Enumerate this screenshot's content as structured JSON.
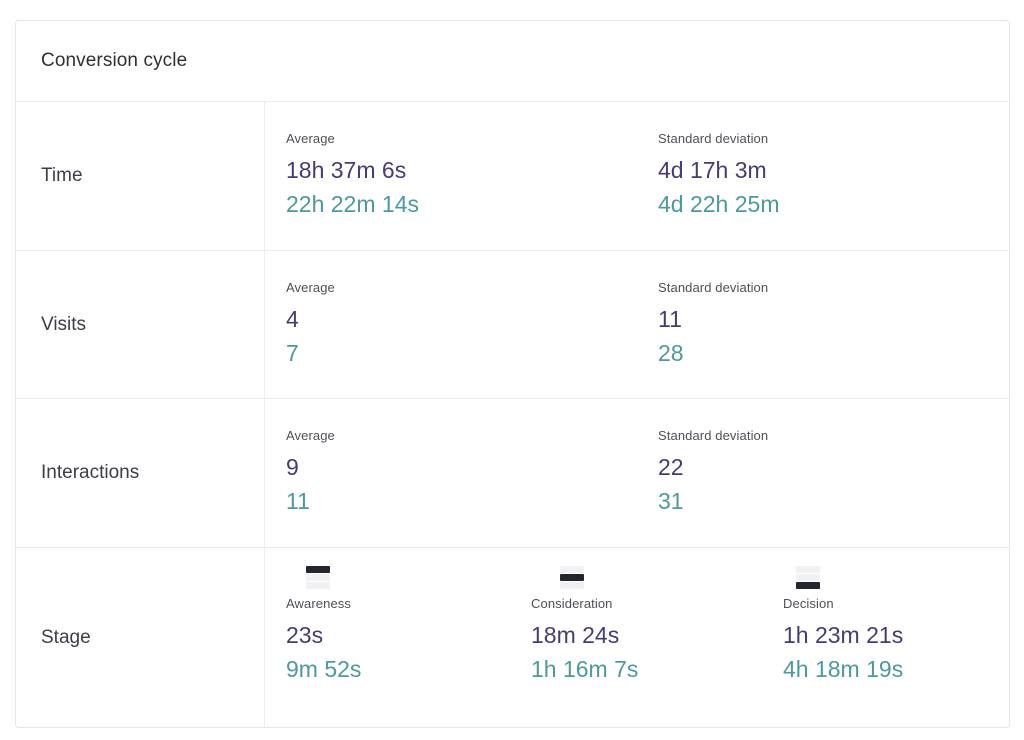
{
  "card": {
    "title": "Conversion cycle",
    "stat_rows": [
      {
        "label": "Time",
        "average_label": "Average",
        "std_label": "Standard deviation",
        "average_primary": "18h 37m 6s",
        "average_secondary": "22h 22m 14s",
        "std_primary": "4d 17h 3m",
        "std_secondary": "4d 22h 25m"
      },
      {
        "label": "Visits",
        "average_label": "Average",
        "std_label": "Standard deviation",
        "average_primary": "4",
        "average_secondary": "7",
        "std_primary": "11",
        "std_secondary": "28"
      },
      {
        "label": "Interactions",
        "average_label": "Average",
        "std_label": "Standard deviation",
        "average_primary": "9",
        "average_secondary": "11",
        "std_primary": "22",
        "std_secondary": "31"
      }
    ],
    "stage_row": {
      "label": "Stage",
      "stages": [
        {
          "name": "Awareness",
          "icon": "funnel-stage-top-icon",
          "primary": "23s",
          "secondary": "9m 52s"
        },
        {
          "name": "Consideration",
          "icon": "funnel-stage-middle-icon",
          "primary": "18m 24s",
          "secondary": "1h 16m 7s"
        },
        {
          "name": "Decision",
          "icon": "funnel-stage-bottom-icon",
          "primary": "1h 23m 21s",
          "secondary": "4h 18m 19s"
        }
      ]
    },
    "colors": {
      "primary_value": "#453c72",
      "secondary_value": "#4d999c",
      "icon_active": "#22252e",
      "icon_inactive": "#f1f1f3",
      "border": "#ececf1"
    }
  }
}
